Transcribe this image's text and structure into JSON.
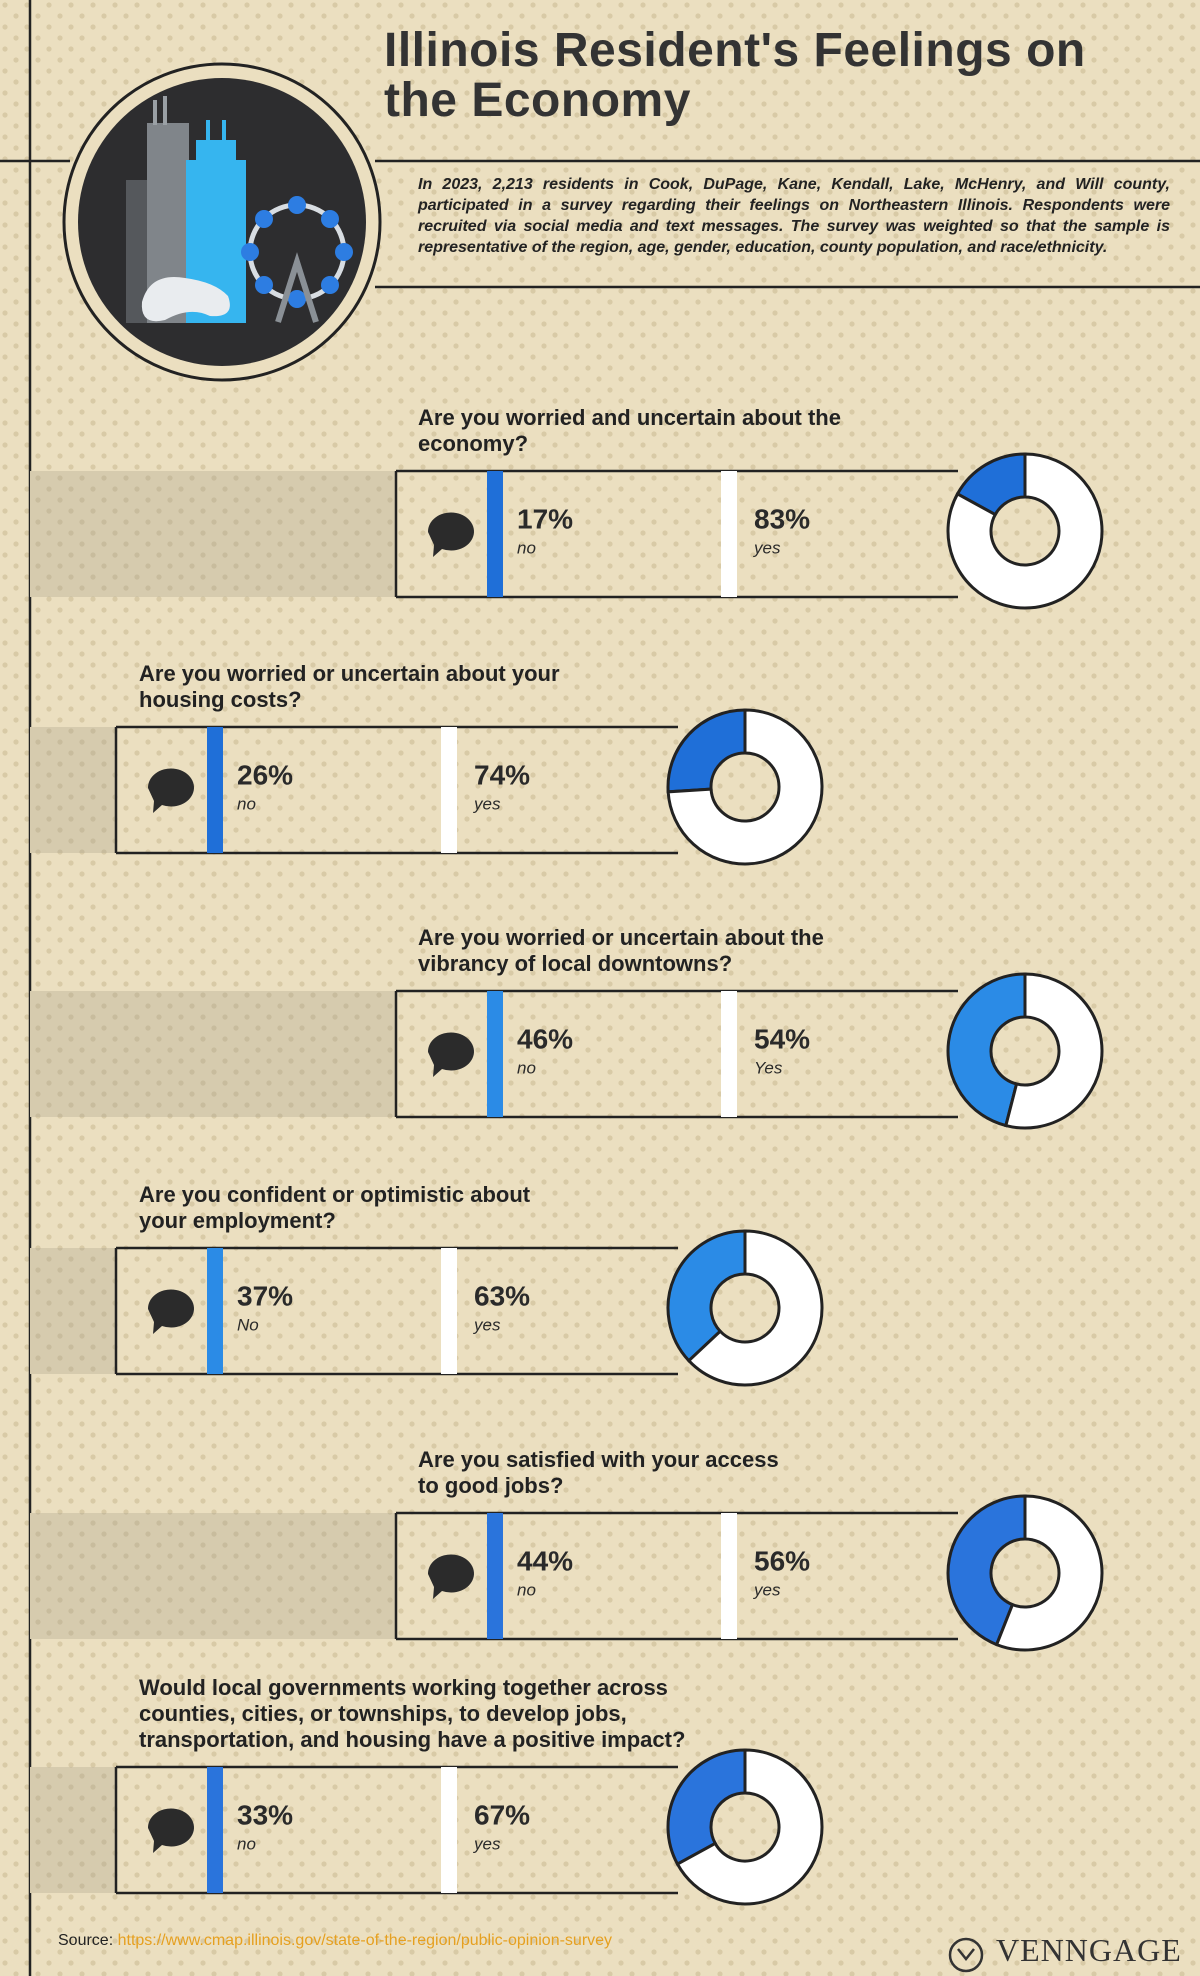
{
  "title": "Illinois Resident's Feelings on the Economy",
  "description": "In 2023, 2,213 residents in Cook, DuPage, Kane, Kendall, Lake, McHenry, and Will county, participated in a survey regarding their feelings on Northeastern Illinois. Respondents were recruited via social media and text messages. The survey was weighted so that the sample is representative of the region, age, gender, education, county population, and race/ethnicity.",
  "source_label": "Source:",
  "source_url": "https://www.cmap.illinois.gov/state-of-the-region/public-opinion-survey",
  "brand": "VENNGAGE",
  "chart_data": [
    {
      "type": "pie",
      "title": "Are you worried and uncertain about the economy?",
      "categories": [
        "no",
        "yes"
      ],
      "values": [
        17,
        83
      ],
      "value_labels": [
        "17%",
        "83%"
      ],
      "colors": [
        "#1f6fd8",
        "#ffffff"
      ]
    },
    {
      "type": "pie",
      "title": "Are you worried or uncertain about your housing costs?",
      "categories": [
        "no",
        "yes"
      ],
      "values": [
        26,
        74
      ],
      "value_labels": [
        "26%",
        "74%"
      ],
      "colors": [
        "#1f6fd8",
        "#ffffff"
      ]
    },
    {
      "type": "pie",
      "title": "Are you worried or uncertain about the vibrancy of local downtowns?",
      "categories": [
        "no",
        "Yes"
      ],
      "values": [
        46,
        54
      ],
      "value_labels": [
        "46%",
        "54%"
      ],
      "colors": [
        "#2b8be6",
        "#ffffff"
      ]
    },
    {
      "type": "pie",
      "title": "Are you confident or optimistic about your employment?",
      "categories": [
        "No",
        "yes"
      ],
      "values": [
        37,
        63
      ],
      "value_labels": [
        "37%",
        "63%"
      ],
      "colors": [
        "#2b8be6",
        "#ffffff"
      ]
    },
    {
      "type": "pie",
      "title": "Are you satisfied with your access to good jobs?",
      "categories": [
        "no",
        "yes"
      ],
      "values": [
        44,
        56
      ],
      "value_labels": [
        "44%",
        "56%"
      ],
      "colors": [
        "#2a74dc",
        "#ffffff"
      ]
    },
    {
      "type": "pie",
      "title": "Would local governments working together across counties, cities, or townships, to develop jobs, transportation, and housing have a positive impact?",
      "categories": [
        "no",
        "yes"
      ],
      "values": [
        33,
        67
      ],
      "value_labels": [
        "33%",
        "67%"
      ],
      "colors": [
        "#2a74dc",
        "#ffffff"
      ]
    }
  ]
}
